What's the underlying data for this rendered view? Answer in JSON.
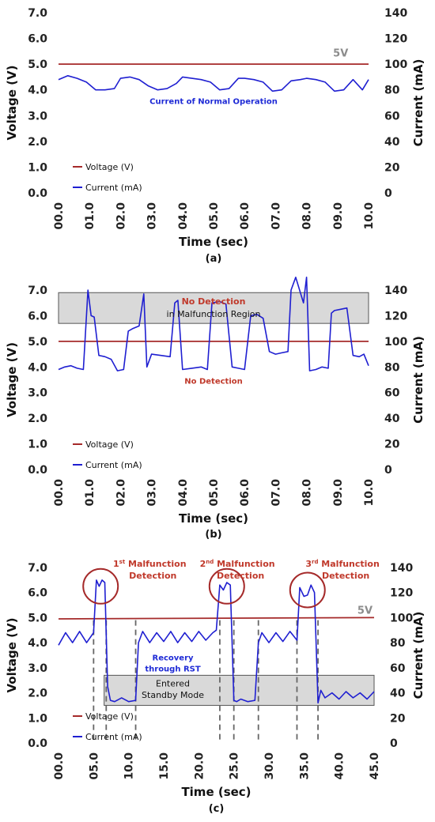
{
  "colors": {
    "voltage": "#a52a2a",
    "current": "#1f1fd1",
    "annotation_red": "#c0392b",
    "annotation_blue": "#1f2bd6",
    "region_fill": "#d9d9d9",
    "dashed": "#666666"
  },
  "chart_data": [
    {
      "type": "line",
      "panel_label": "(a)",
      "xlabel": "Time (sec)",
      "ylabel_left": "Voltage (V)",
      "ylabel_right": "Current (mA)",
      "xlim": [
        0,
        10
      ],
      "ylim_left": [
        0,
        7
      ],
      "ylim_right": [
        0,
        140
      ],
      "x_ticks": [
        "00.0",
        "01.0",
        "02.0",
        "03.0",
        "04.0",
        "05.0",
        "06.0",
        "07.0",
        "08.0",
        "09.0",
        "10.0"
      ],
      "y_ticks_left": [
        "0.0",
        "1.0",
        "2.0",
        "3.0",
        "4.0",
        "5.0",
        "6.0",
        "7.0"
      ],
      "y_ticks_right": [
        "0",
        "20",
        "40",
        "60",
        "80",
        "100",
        "120",
        "140"
      ],
      "legend": [
        "Voltage (V)",
        "Current (mA)"
      ],
      "annotations": {
        "voltage_label": "5V",
        "current_label": "Current of Normal Operation"
      },
      "series": [
        {
          "name": "Voltage (V)",
          "axis": "left",
          "x": [
            0,
            10
          ],
          "values": [
            5.0,
            5.0
          ]
        },
        {
          "name": "Current (mA)",
          "axis": "right",
          "x": [
            0,
            0.3,
            0.6,
            0.9,
            1.2,
            1.5,
            1.8,
            2.0,
            2.3,
            2.6,
            2.9,
            3.2,
            3.5,
            3.8,
            4.0,
            4.3,
            4.6,
            4.9,
            5.2,
            5.5,
            5.8,
            6.0,
            6.3,
            6.6,
            6.9,
            7.2,
            7.5,
            7.8,
            8.0,
            8.3,
            8.6,
            8.9,
            9.2,
            9.5,
            9.8,
            10.0
          ],
          "values": [
            88,
            91,
            89,
            86,
            80,
            80,
            81,
            89,
            90,
            88,
            83,
            80,
            81,
            85,
            90,
            89,
            88,
            86,
            80,
            81,
            89,
            89,
            88,
            86,
            79,
            80,
            87,
            88,
            89,
            88,
            86,
            79,
            80,
            88,
            80,
            88
          ]
        }
      ]
    },
    {
      "type": "line",
      "panel_label": "(b)",
      "xlabel": "Time (sec)",
      "ylabel_left": "Voltage (V)",
      "ylabel_right": "Current (mA)",
      "xlim": [
        0,
        10
      ],
      "ylim_left": [
        0,
        7
      ],
      "ylim_right": [
        0,
        140
      ],
      "x_ticks": [
        "00.0",
        "01.0",
        "02.0",
        "03.0",
        "04.0",
        "05.0",
        "06.0",
        "07.0",
        "08.0",
        "09.0",
        "10.0"
      ],
      "y_ticks_left": [
        "0.0",
        "1.0",
        "2.0",
        "3.0",
        "4.0",
        "5.0",
        "6.0",
        "7.0"
      ],
      "y_ticks_right": [
        "0",
        "20",
        "40",
        "60",
        "80",
        "100",
        "120",
        "140"
      ],
      "legend": [
        "Voltage (V)",
        "Current (mA)"
      ],
      "malfunction_region_left": [
        5.7,
        6.9
      ],
      "annotations": {
        "region_title": "No Detection",
        "region_subtitle": "in Malfunction Region",
        "no_detection": "No Detection"
      },
      "series": [
        {
          "name": "Voltage (V)",
          "axis": "left",
          "x": [
            0,
            10
          ],
          "values": [
            5.0,
            5.0
          ]
        },
        {
          "name": "Current (mA)",
          "axis": "right",
          "x": [
            0,
            0.2,
            0.4,
            0.6,
            0.8,
            0.95,
            1.05,
            1.15,
            1.3,
            1.5,
            1.7,
            1.9,
            2.1,
            2.25,
            2.4,
            2.6,
            2.75,
            2.85,
            3.0,
            3.3,
            3.6,
            3.75,
            3.85,
            4.0,
            4.3,
            4.6,
            4.8,
            4.95,
            5.2,
            5.4,
            5.6,
            5.8,
            6.0,
            6.2,
            6.4,
            6.6,
            6.8,
            7.0,
            7.2,
            7.4,
            7.5,
            7.65,
            7.9,
            8.0,
            8.1,
            8.3,
            8.5,
            8.7,
            8.8,
            8.9,
            9.1,
            9.3,
            9.5,
            9.7,
            9.85,
            10.0
          ],
          "values": [
            78,
            80,
            81,
            79,
            78,
            140,
            120,
            119,
            89,
            88,
            86,
            77,
            78,
            108,
            110,
            112,
            137,
            80,
            90,
            89,
            88,
            130,
            132,
            78,
            79,
            80,
            78,
            130,
            131,
            129,
            80,
            79,
            78,
            120,
            121,
            118,
            92,
            90,
            91,
            92,
            140,
            150,
            130,
            150,
            77,
            78,
            80,
            79,
            122,
            124,
            125,
            126,
            89,
            88,
            90,
            81
          ]
        }
      ]
    },
    {
      "type": "line",
      "panel_label": "(c)",
      "xlabel": "Time (sec)",
      "ylabel_left": "Voltage (V)",
      "ylabel_right": "Current (mA)",
      "xlim": [
        0,
        45
      ],
      "ylim_left": [
        0,
        7
      ],
      "ylim_right": [
        0,
        140
      ],
      "x_ticks": [
        "00.0",
        "05.0",
        "10.0",
        "15.0",
        "20.0",
        "25.0",
        "30.0",
        "35.0",
        "40.0",
        "45.0"
      ],
      "y_ticks_left": [
        "0.0",
        "1.0",
        "2.0",
        "3.0",
        "4.0",
        "5.0",
        "6.0",
        "7.0"
      ],
      "y_ticks_right": [
        "0",
        "20",
        "40",
        "60",
        "80",
        "100",
        "120",
        "140"
      ],
      "legend": [
        "Voltage (V)",
        "Current (mA)"
      ],
      "standby_region_left": [
        1.5,
        2.7
      ],
      "standby_region_x": [
        6.5,
        45
      ],
      "dashed_x": [
        5.0,
        6.8,
        11.0,
        23.0,
        25.0,
        28.5,
        34.0,
        37.0
      ],
      "detection_circles": [
        {
          "x": 6.0,
          "y": 6.25,
          "label_main": "1",
          "label_sup": "st",
          "label_rest": " Malfunction",
          "label_line2": "Detection"
        },
        {
          "x": 24.0,
          "y": 6.25,
          "label_main": "2",
          "label_sup": "nd",
          "label_rest": " Malfunction",
          "label_line2": "Detection"
        },
        {
          "x": 35.5,
          "y": 6.1,
          "label_main": "3",
          "label_sup": "rd",
          "label_rest": " Malfunction",
          "label_line2": "Detection"
        }
      ],
      "annotations": {
        "voltage_label": "5V",
        "recovery_line1": "Recovery",
        "recovery_line2": "through RST",
        "standby_line1": "Entered",
        "standby_line2": "Standby Mode"
      },
      "series": [
        {
          "name": "Voltage (V)",
          "axis": "left",
          "x": [
            0,
            45
          ],
          "values": [
            4.95,
            5.0
          ]
        },
        {
          "name": "Current (mA)",
          "axis": "right",
          "x": [
            0,
            1,
            2,
            3,
            4,
            5,
            5.4,
            5.8,
            6.2,
            6.6,
            7.0,
            7.4,
            8,
            9,
            10,
            11,
            11.4,
            12,
            13,
            14,
            15,
            16,
            17,
            18,
            19,
            20,
            21,
            22,
            22.5,
            23.0,
            23.5,
            24,
            24.5,
            25.0,
            25.4,
            26,
            27,
            28,
            28.5,
            29,
            30,
            31,
            32,
            33,
            34,
            34.4,
            35,
            35.5,
            36,
            36.5,
            37.0,
            37.4,
            38,
            39,
            40,
            41,
            42,
            43,
            44,
            45
          ],
          "values": [
            78,
            88,
            80,
            89,
            80,
            88,
            130,
            125,
            130,
            128,
            45,
            34,
            33,
            36,
            33,
            34,
            80,
            89,
            80,
            88,
            81,
            89,
            80,
            88,
            81,
            89,
            82,
            88,
            90,
            126,
            122,
            128,
            126,
            34,
            33,
            35,
            33,
            34,
            80,
            88,
            80,
            88,
            81,
            89,
            82,
            124,
            117,
            118,
            126,
            120,
            32,
            42,
            36,
            40,
            35,
            41,
            36,
            40,
            35,
            41
          ]
        }
      ]
    }
  ]
}
